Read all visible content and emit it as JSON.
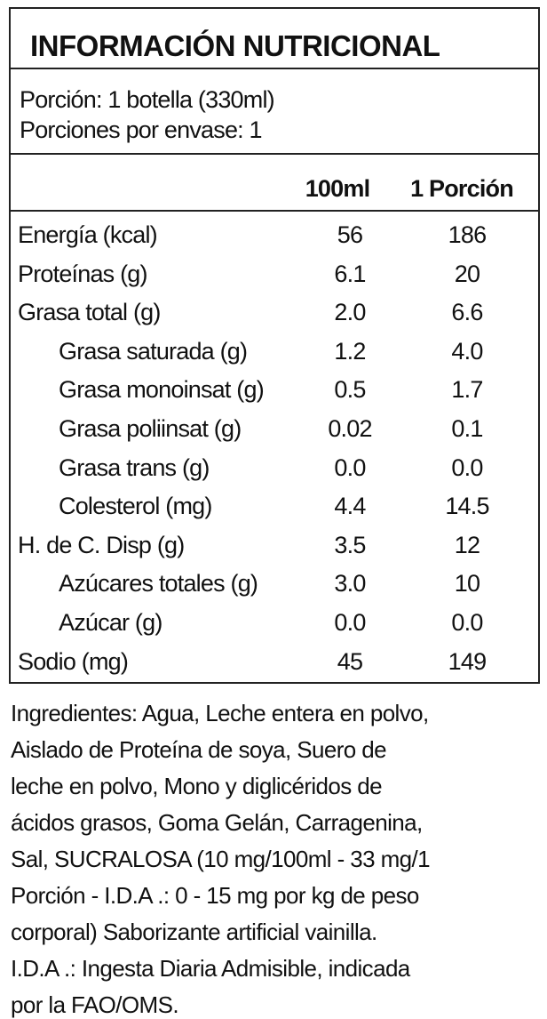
{
  "header": {
    "title": "INFORMACIÓN NUTRICIONAL"
  },
  "serving": {
    "size": "Porción: 1 botella (330ml)",
    "per_container": "Porciones por envase: 1"
  },
  "table": {
    "columns": [
      "100ml",
      "1 Porción"
    ],
    "rows": [
      [
        "Energía (kcal)",
        "56",
        "186"
      ],
      [
        "Proteínas (g)",
        "6.1",
        "20"
      ],
      [
        "Grasa total (g)",
        "2.0",
        "6.6"
      ],
      [
        "Grasa saturada (g)",
        "1.2",
        "4.0"
      ],
      [
        "Grasa monoinsat (g)",
        "0.5",
        "1.7"
      ],
      [
        "Grasa poliinsat (g)",
        "0.02",
        "0.1"
      ],
      [
        "Grasa trans (g)",
        "0.0",
        "0.0"
      ],
      [
        "Colesterol (mg)",
        "4.4",
        "14.5"
      ],
      [
        "H. de C. Disp (g)",
        "3.5",
        "12"
      ],
      [
        "Azúcares totales (g)",
        "3.0",
        "10"
      ],
      [
        "Azúcar (g)",
        "0.0",
        "0.0"
      ],
      [
        "Sodio (mg)",
        "45",
        "149"
      ]
    ]
  },
  "ingredients": {
    "lines": [
      "Ingredientes: Agua, Leche entera en polvo,",
      "Aislado de Proteína de soya, Suero de",
      "leche en polvo, Mono y diglicéridos de",
      "ácidos grasos, Goma Gelán, Carragenina,",
      "Sal, SUCRALOSA (10 mg/100ml - 33 mg/1",
      "Porción - I.D.A .: 0 - 15 mg por kg de peso",
      "corporal) Saborizante artificial vainilla.",
      "I.D.A .: Ingesta Diaria Admisible, indicada",
      "por la FAO/OMS."
    ]
  }
}
